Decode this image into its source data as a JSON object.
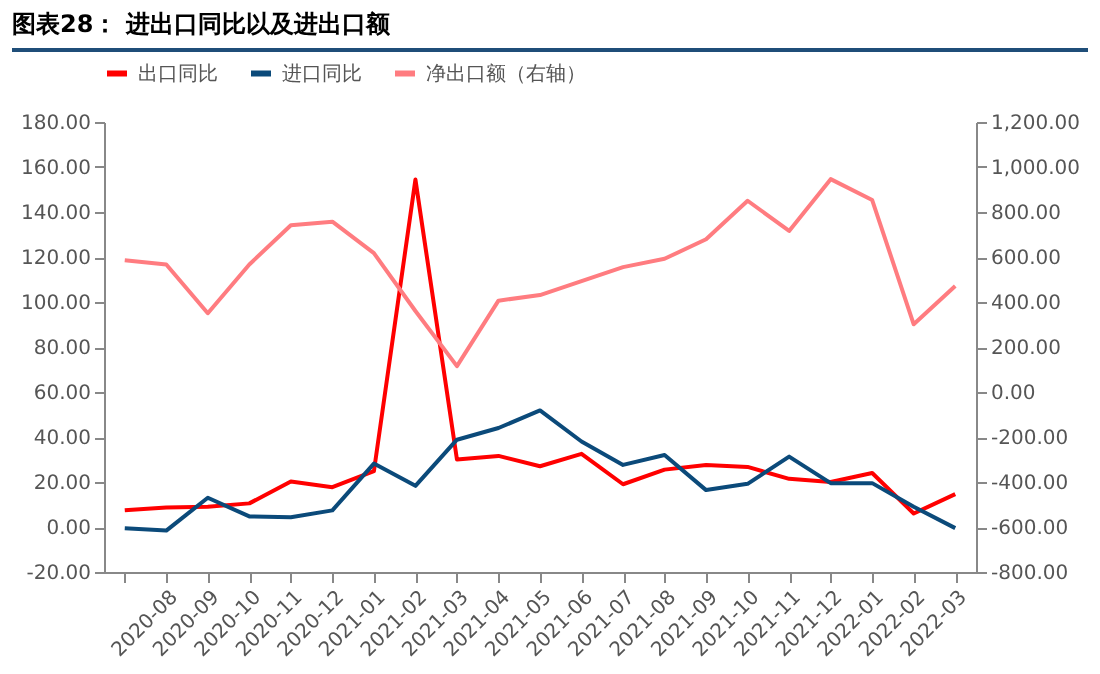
{
  "chart_data": {
    "type": "line",
    "title": "图表28：  进出口同比以及进出口额",
    "categories": [
      null,
      "2020-08",
      "2020-09",
      "2020-10",
      "2020-11",
      "2020-12",
      "2021-01",
      "2021-02",
      "2021-03",
      "2021-04",
      "2021-05",
      "2021-06",
      "2021-07",
      "2021-08",
      "2021-09",
      "2021-10",
      "2021-11",
      "2021-12",
      "2022-01",
      "2022-02",
      "2022-03"
    ],
    "series": [
      {
        "name": "出口同比",
        "color": "#ff0000",
        "values": [
          7.4,
          8.7,
          9,
          10.5,
          20.2,
          17.7,
          24.8,
          154.4,
          30,
          31.6,
          27,
          32.5,
          19,
          25.5,
          27.6,
          26.7,
          21.4,
          20,
          24,
          6,
          14.6
        ]
      },
      {
        "name": "进口同比",
        "color": "#0b4a7a",
        "values": [
          -0.6,
          -1.6,
          13,
          4.7,
          4.3,
          7.4,
          28.2,
          18.3,
          38.8,
          44,
          51.8,
          38,
          27.6,
          32,
          16.4,
          19.2,
          31.3,
          19.5,
          19.5,
          9,
          -0.5
        ]
      },
      {
        "name": "净出口额（右轴）",
        "color": "#ff7c80",
        "axis": "y2",
        "values": [
          586,
          567,
          350,
          567,
          741,
          757,
          617,
          360,
          115,
          406,
          431,
          493,
          555,
          592,
          679,
          850,
          716,
          946,
          853,
          301,
          471
        ]
      }
    ],
    "ylim": [
      -20,
      180
    ],
    "yticks": [
      {
        "value": -20,
        "label": "-20.00"
      },
      {
        "value": 0,
        "label": "0.00"
      },
      {
        "value": 20,
        "label": "20.00"
      },
      {
        "value": 40,
        "label": "40.00"
      },
      {
        "value": 60,
        "label": "60.00"
      },
      {
        "value": 80,
        "label": "80.00"
      },
      {
        "value": 100,
        "label": "100.00"
      },
      {
        "value": 120,
        "label": "120.00"
      },
      {
        "value": 140,
        "label": "140.00"
      },
      {
        "value": 160,
        "label": "160.00"
      },
      {
        "value": 180,
        "label": "180.00"
      }
    ],
    "y2lim": [
      -800,
      1200
    ],
    "y2ticks": [
      {
        "value": -800,
        "label": "-800.00"
      },
      {
        "value": -600,
        "label": "-600.00"
      },
      {
        "value": -400,
        "label": "-400.00"
      },
      {
        "value": -200,
        "label": "-200.00"
      },
      {
        "value": 0,
        "label": "0.00"
      },
      {
        "value": 200,
        "label": "200.00"
      },
      {
        "value": 400,
        "label": "400.00"
      },
      {
        "value": 600,
        "label": "600.00"
      },
      {
        "value": 800,
        "label": "800.00"
      },
      {
        "value": 1000,
        "label": "1,000.00"
      },
      {
        "value": 1200,
        "label": "1,200.00"
      }
    ],
    "legend": "top",
    "grid": false,
    "marker": "none",
    "line_style": "solid"
  }
}
